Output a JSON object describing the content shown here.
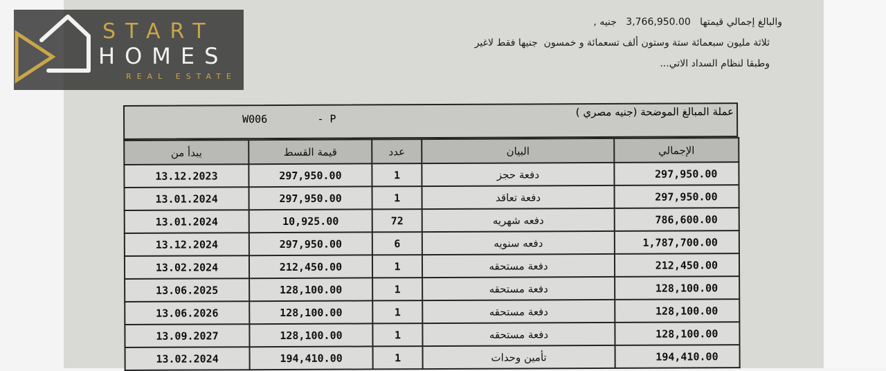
{
  "header_text": {
    "line1_prefix": "والبالغ إجمالي قيمتها",
    "line1_amount": "3,766,950.00",
    "line1_suffix": "جنيه ,",
    "line2": "ثلاثة مليون سبعمائة ستة وستون ألف تسعمائة و خمسون  جنيها فقط لاغير",
    "line3": "وطبقا لنظام السداد الاتي..."
  },
  "table": {
    "currency_note": "عملة المبالغ الموضحة (جنيه مصري )",
    "unit_code": "W006        - P",
    "columns": {
      "start_from": "يبدأ من",
      "installment_value": "قيمة القسط",
      "count": "عدد",
      "description": "البيان",
      "total": "الإجمالي"
    },
    "rows": [
      {
        "start_from": "13.12.2023",
        "installment_value": "297,950.00",
        "count": "1",
        "description": "دفعة حجز",
        "total": "297,950.00"
      },
      {
        "start_from": "13.01.2024",
        "installment_value": "297,950.00",
        "count": "1",
        "description": "دفعة تعاقد",
        "total": "297,950.00"
      },
      {
        "start_from": "13.01.2024",
        "installment_value": "10,925.00",
        "count": "72",
        "description": "دفعه شهريه",
        "total": "786,600.00"
      },
      {
        "start_from": "13.12.2024",
        "installment_value": "297,950.00",
        "count": "6",
        "description": "دفعه سنويه",
        "total": "1,787,700.00"
      },
      {
        "start_from": "13.02.2024",
        "installment_value": "212,450.00",
        "count": "1",
        "description": "دفعة مستحقه",
        "total": "212,450.00"
      },
      {
        "start_from": "13.06.2025",
        "installment_value": "128,100.00",
        "count": "1",
        "description": "دفعة مستحقه",
        "total": "128,100.00"
      },
      {
        "start_from": "13.06.2026",
        "installment_value": "128,100.00",
        "count": "1",
        "description": "دفعة مستحقه",
        "total": "128,100.00"
      },
      {
        "start_from": "13.09.2027",
        "installment_value": "128,100.00",
        "count": "1",
        "description": "دفعة مستحقه",
        "total": "128,100.00"
      },
      {
        "start_from": "13.02.2024",
        "installment_value": "194,410.00",
        "count": "1",
        "description": "تأمين وحدات",
        "total": "194,410.00"
      }
    ]
  },
  "watermark": {
    "line1": "START",
    "line2": "HOMES",
    "line3": "REAL ESTATE",
    "colors": {
      "gold": "#c9a64a",
      "white": "#f2f2f2"
    }
  }
}
